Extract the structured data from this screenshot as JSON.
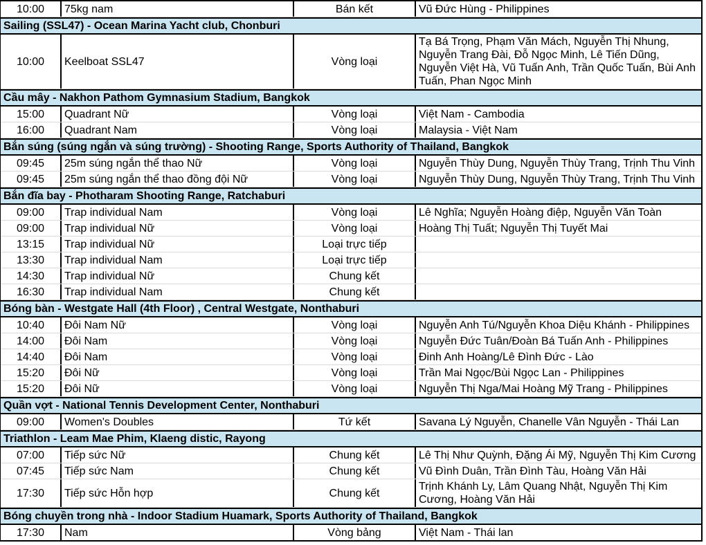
{
  "table": {
    "colors": {
      "section_bg": "#c9e5f2",
      "grid_dark": "#000000",
      "row_divider": "#d9d9d9",
      "row_bg": "#ffffff",
      "text": "#000000"
    },
    "rows": [
      {
        "type": "match",
        "time": "10:00",
        "event": "75kg nam",
        "round": "Bán kết",
        "participants": "Vũ Đức Hùng - Philippines"
      },
      {
        "type": "section",
        "label": "Sailing (SSL47) - Ocean Marina Yacht club, Chonburi"
      },
      {
        "type": "match",
        "time": "10:00",
        "event": "Keelboat SSL47",
        "round": "Vòng loại",
        "participants": "Tạ Bá Trọng, Phạm Văn Mách, Nguyễn Thị Nhung, Nguyễn Trang Đài, Đỗ Ngọc Minh, Lê Tiến Dũng, Nguyễn Việt Hà, Vũ Tuấn Anh, Trần Quốc Tuấn, Bùi Anh Tuấn, Phan Ngọc Minh"
      },
      {
        "type": "section",
        "label": "Cầu mây - Nakhon Pathom Gymnasium Stadium, Bangkok"
      },
      {
        "type": "match",
        "time": "15:00",
        "event": "Quadrant Nữ",
        "round": "Vòng loại",
        "participants": "Việt Nam - Cambodia"
      },
      {
        "type": "match",
        "time": "16:00",
        "event": "Quadrant Nam",
        "round": "Vòng loại",
        "participants": "Malaysia - Việt Nam"
      },
      {
        "type": "section",
        "label": "Bắn súng (súng ngắn và súng trường) - Shooting Range, Sports Authority of Thailand, Bangkok"
      },
      {
        "type": "match",
        "time": "09:45",
        "event": "25m súng ngắn thể thao Nữ",
        "round": "Vòng loại",
        "participants": "Nguyễn Thùy Dung, Nguyễn Thùy Trang, Trịnh Thu Vinh"
      },
      {
        "type": "match",
        "time": "09:45",
        "event": "25m súng ngắn thể thao đồng đội Nữ",
        "round": "Vòng loại",
        "participants": "Nguyễn Thùy Dung, Nguyễn Thùy Trang, Trịnh Thu Vinh"
      },
      {
        "type": "section",
        "label": "Bắn đĩa bay - Photharam Shooting Range, Ratchaburi"
      },
      {
        "type": "match",
        "time": "09:00",
        "event": "Trap individual Nam",
        "round": "Vòng loại",
        "participants": "Lê Nghĩa; Nguyễn Hoàng điệp, Nguyễn Văn Toàn"
      },
      {
        "type": "match",
        "time": "09:00",
        "event": "Trap individual Nữ",
        "round": "Vòng loại",
        "participants": "Hoàng Thị Tuất; Nguyễn Thị Tuyết Mai"
      },
      {
        "type": "match",
        "time": "13:15",
        "event": "Trap individual Nữ",
        "round": "Loại trực tiếp",
        "participants": ""
      },
      {
        "type": "match",
        "time": "13:30",
        "event": "Trap individual Nam",
        "round": "Loại trực tiếp",
        "participants": ""
      },
      {
        "type": "match",
        "time": "14:30",
        "event": "Trap individual Nữ",
        "round": "Chung kết",
        "participants": ""
      },
      {
        "type": "match",
        "time": "16:30",
        "event": "Trap individual Nam",
        "round": "Chung kết",
        "participants": ""
      },
      {
        "type": "section",
        "label": "Bóng bàn - Westgate Hall (4th Floor) , Central Westgate, Nonthaburi"
      },
      {
        "type": "match",
        "time": "10:40",
        "event": "Đôi Nam Nữ",
        "round": "Vòng loại",
        "participants": "Nguyễn Anh Tú/Nguyễn Khoa Diệu Khánh - Philippines"
      },
      {
        "type": "match",
        "time": "14:00",
        "event": "Đôi Nam",
        "round": "Vòng loại",
        "participants": "Nguyễn Đức Tuân/Đoàn Bá Tuấn Anh - Philippines"
      },
      {
        "type": "match",
        "time": "14:40",
        "event": "Đôi Nam",
        "round": "Vòng loại",
        "participants": "Đinh Anh Hoàng/Lê Đình Đức - Lào"
      },
      {
        "type": "match",
        "time": "15:20",
        "event": "Đôi Nữ",
        "round": "Vòng loại",
        "participants": "Trần Mai Ngọc/Bùi Ngọc Lan - Philippines"
      },
      {
        "type": "match",
        "time": "15:20",
        "event": "Đôi Nữ",
        "round": "Vòng loại",
        "participants": "Nguyễn Thị Nga/Mai Hoàng Mỹ Trang - Philippines"
      },
      {
        "type": "section",
        "label": "Quần vợt - National Tennis Development Center, Nonthaburi"
      },
      {
        "type": "match",
        "time": "09:00",
        "event": "Women's Doubles",
        "round": "Tứ kết",
        "participants": "Savana Lý Nguyễn, Chanelle Vân Nguyễn - Thái Lan"
      },
      {
        "type": "section",
        "label": "Triathlon - Leam Mae Phim, Klaeng distic, Rayong"
      },
      {
        "type": "match",
        "time": "07:00",
        "event": "Tiếp sức Nữ",
        "round": "Chung kết",
        "participants": "Lê Thị Như Quỳnh, Đặng Ái Mỹ, Nguyễn Thị Kim Cương"
      },
      {
        "type": "match",
        "time": "07:45",
        "event": "Tiếp sức Nam",
        "round": "Chung kết",
        "participants": "Vũ Đình Duân, Trần Đình Tàu, Hoàng Văn Hải"
      },
      {
        "type": "match",
        "time": "17:30",
        "event": "Tiếp sức Hỗn hợp",
        "round": "Chung kết",
        "participants": "Trịnh Khánh Ly, Lâm Quang Nhật, Nguyễn Thị Kim Cương, Hoàng Văn Hải"
      },
      {
        "type": "section",
        "label": "Bóng chuyền trong nhà  - Indoor Stadium Huamark, Sports Authority of Thailand, Bangkok"
      },
      {
        "type": "match",
        "time": "17:30",
        "event": "Nam",
        "round": "Vòng bảng",
        "participants": "Việt Nam -  Thái lan"
      }
    ]
  }
}
